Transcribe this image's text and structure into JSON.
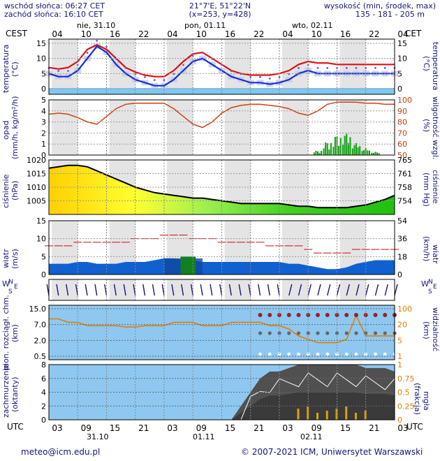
{
  "header": {
    "sunrise": "wschód słońca: 06:27 CET",
    "sunset": "zachód słońca: 16:10 CET",
    "coords": "21°7'E, 51°22'N",
    "grid": "(x=253,  y=428)",
    "elev_label": "wysokość (min, środek, max)",
    "elev_values": "135 - 181 - 205 m"
  },
  "top_axis": {
    "tz_left": "CEST",
    "tz_right": "CET",
    "days": [
      "nie, 31.10",
      "pon, 01.11",
      "wto, 02.11"
    ],
    "hours": [
      "04",
      "10",
      "16",
      "22",
      "04",
      "10",
      "16",
      "22",
      "04",
      "10",
      "16",
      "22",
      "04"
    ]
  },
  "bottom_axis": {
    "tz_left": "UTC",
    "tz_right": "UTC",
    "hours": [
      "03",
      "09",
      "15",
      "21",
      "03",
      "09",
      "15",
      "21",
      "03",
      "09",
      "15",
      "21",
      "03"
    ],
    "dates": [
      "31.10",
      "01.11",
      "02.11"
    ]
  },
  "footer": {
    "email": "meteo@icm.edu.pl",
    "copyright": "© 2007-2021 ICM, Uniwersytet Warszawski"
  },
  "panels": {
    "temp": {
      "left_label": "temperatura",
      "left_unit": "(°C)",
      "right_label": "(°C)",
      "right_unit": "temperatura",
      "ticks": [
        "15",
        "10",
        "5",
        "0"
      ]
    },
    "precip": {
      "left_label": "opad",
      "left_unit": "(mm/h, kg/m²/h)",
      "right_label": "(%)",
      "right_unit": "wilgotność wzgl.",
      "ticks_left": [
        "5",
        "4",
        "3",
        "2",
        "1",
        "0"
      ],
      "ticks_right": [
        "100",
        "90",
        "80",
        "70",
        "60",
        "50"
      ]
    },
    "pressure": {
      "left_label": "ciśnienie",
      "left_unit": "(hPa)",
      "right_label": "(mm Hg)",
      "right_unit": "ciśnienie",
      "ticks_left": [
        "1020",
        "1015",
        "1010",
        "1005"
      ],
      "ticks_right": [
        "765",
        "761",
        "758",
        "754"
      ]
    },
    "wind": {
      "left_label": "wiatr",
      "left_unit": "(m/s)",
      "right_label": "(km/h)",
      "right_unit": "wiatr",
      "ticks_left": [
        "15",
        "10",
        "5",
        "0"
      ],
      "ticks_right": [
        "54",
        "36",
        "18",
        "0"
      ]
    },
    "winddir": {
      "compass_n": "N",
      "compass_w": "W",
      "compass_e": "E",
      "compass_s": "S"
    },
    "cloudbase": {
      "left_label": "pion. rozciągł. chm.",
      "left_unit": "(km)",
      "right_label": "(km)",
      "right_unit": "widzialność",
      "ticks_left": [
        "15.0",
        "7.0",
        "2.0",
        "0.5"
      ],
      "ticks_right": [
        "100",
        "20",
        "5",
        "1"
      ]
    },
    "cloudcover": {
      "left_label": "zachmurzenie",
      "left_unit": "(oktanty)",
      "right_label": "(frakcja)",
      "right_unit": "mgła",
      "ticks_left": [
        "8",
        "6",
        "4",
        "2",
        "0"
      ],
      "ticks_right": [
        "1",
        "0.75",
        "0.5",
        "0.25",
        "0"
      ]
    }
  },
  "colors": {
    "temp_line": "#e01010",
    "dew_line": "#1030d0",
    "humidity_line": "#d04010",
    "pressure_line": "#000000",
    "gust_line": "#c01010",
    "precip_bar": "#10a010",
    "grid_label": "#15157a",
    "visibility_line": "#e08000"
  },
  "chart_data": [
    {
      "type": "line",
      "panel": "temperature",
      "series": [
        {
          "name": "temperature",
          "values": [
            7,
            6.5,
            7,
            9,
            13,
            14.5,
            13,
            10,
            7,
            5.5,
            4.5,
            4,
            4,
            6,
            9,
            11.5,
            12,
            10,
            8,
            6,
            5,
            4.5,
            4.5,
            4.5,
            5,
            6,
            8,
            9,
            8.5,
            8.5,
            8,
            8,
            8,
            8,
            8,
            8,
            8
          ]
        },
        {
          "name": "dew point",
          "values": [
            5,
            4,
            4,
            6,
            10,
            14,
            12,
            8,
            5,
            3,
            2,
            1,
            1,
            3,
            6,
            9,
            10,
            8,
            6,
            4,
            3,
            2,
            2,
            1.5,
            2,
            3,
            5,
            6,
            5,
            5,
            5,
            5,
            5,
            5,
            5,
            5,
            5
          ]
        }
      ],
      "ylim": [
        0,
        15
      ]
    },
    {
      "type": "bar",
      "panel": "precipitation",
      "ylim_left": [
        0,
        5
      ],
      "ylim_right": [
        50,
        100
      ],
      "humidity": [
        87,
        88,
        87,
        84,
        80,
        78,
        85,
        92,
        96,
        97,
        97,
        97,
        97,
        92,
        85,
        78,
        75,
        80,
        88,
        93,
        95,
        96,
        96,
        95,
        94,
        92,
        88,
        86,
        90,
        96,
        98,
        98,
        98,
        97,
        97,
        96,
        96
      ],
      "precip_max": [
        0,
        0,
        0,
        0,
        0,
        0,
        0,
        0,
        0,
        0,
        0,
        0,
        0,
        0,
        0,
        0,
        0,
        0,
        0,
        0,
        0,
        0,
        0,
        0,
        0,
        0,
        0,
        0,
        0.4,
        1.2,
        1.8,
        2.0,
        1.1,
        0.6,
        0.3,
        0,
        0
      ]
    },
    {
      "type": "area",
      "panel": "pressure",
      "values": [
        1017,
        1017.5,
        1018,
        1018,
        1017.5,
        1016,
        1014.5,
        1013,
        1011.5,
        1010,
        1009,
        1008,
        1007.5,
        1007,
        1006.5,
        1006,
        1006,
        1005.5,
        1005,
        1004.5,
        1004,
        1004,
        1004,
        1004,
        1004,
        1003.5,
        1003,
        1003,
        1002.5,
        1002.5,
        1002.5,
        1002.5,
        1003,
        1003.5,
        1004.5,
        1005.5,
        1007
      ],
      "ylim": [
        1000,
        1020
      ]
    },
    {
      "type": "line",
      "panel": "wind",
      "series": [
        {
          "name": "gusts",
          "values": [
            8,
            8,
            8,
            9,
            9,
            9,
            9,
            9,
            9,
            10,
            10,
            10,
            11,
            11,
            11,
            10,
            10,
            10,
            9,
            9,
            9,
            9,
            9,
            8,
            8,
            8,
            8,
            7,
            6,
            6,
            6,
            6,
            7,
            7,
            7,
            7,
            7
          ]
        },
        {
          "name": "wind speed",
          "values": [
            3,
            3,
            3,
            3.5,
            3.5,
            3,
            3,
            3,
            3.5,
            3.5,
            3.5,
            4,
            4.5,
            4.5,
            4,
            4,
            3.5,
            3.5,
            3.5,
            3.5,
            3.5,
            3.5,
            3.5,
            3.5,
            3.5,
            3,
            3,
            2.5,
            2,
            1.5,
            1.5,
            2,
            3,
            3.5,
            4,
            4,
            4
          ]
        }
      ],
      "ylim": [
        0,
        15
      ]
    },
    {
      "type": "area",
      "panel": "cloud cover",
      "values": [
        0,
        0,
        0,
        0,
        0,
        0,
        0,
        0,
        0,
        0,
        0,
        0,
        0,
        0,
        0,
        0,
        0,
        0,
        0,
        0,
        2,
        4,
        6,
        7,
        7,
        7.5,
        8,
        8,
        8,
        8,
        8,
        8,
        8,
        7.5,
        7.5,
        7.5,
        7
      ],
      "ylim": [
        0,
        8
      ]
    }
  ]
}
